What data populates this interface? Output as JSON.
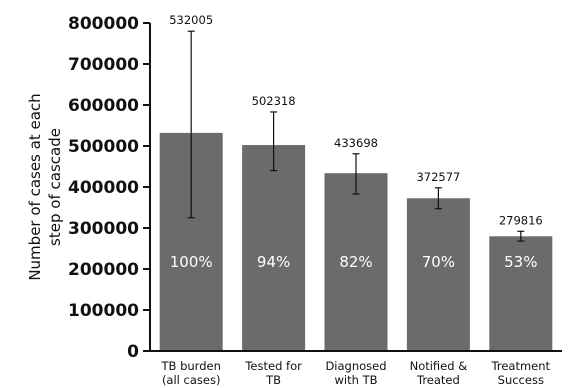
{
  "chart_data": {
    "type": "bar",
    "title": "",
    "ylabel": "Number of cases at each step of cascade",
    "ylabel_lines": [
      "Number of cases at each",
      "step of cascade"
    ],
    "xlabel": "",
    "ylim": [
      0,
      800000
    ],
    "yticks": [
      0,
      100000,
      200000,
      300000,
      400000,
      500000,
      600000,
      700000,
      800000
    ],
    "ytick_labels": [
      "0",
      "100000",
      "200000",
      "300000",
      "400000",
      "500000",
      "600000",
      "700000",
      "800000"
    ],
    "grid": false,
    "bar_color": "#6b6b6b",
    "categories": [
      [
        "TB burden",
        "(all cases)"
      ],
      [
        "Tested for",
        "TB"
      ],
      [
        "Diagnosed",
        "with TB"
      ],
      [
        "Notified &",
        "Treated"
      ],
      [
        "Treatment",
        "Success"
      ]
    ],
    "values": [
      532005,
      502318,
      433698,
      372577,
      279816
    ],
    "value_labels": [
      "532005",
      "502318",
      "433698",
      "372577",
      "279816"
    ],
    "percent_labels": [
      "100%",
      "94%",
      "82%",
      "70%",
      "53%"
    ],
    "error_low": [
      325000,
      440000,
      383000,
      347000,
      268000
    ],
    "error_high": [
      780000,
      583000,
      481000,
      398000,
      292000
    ]
  }
}
